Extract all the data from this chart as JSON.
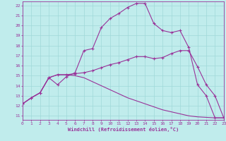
{
  "xlabel": "Windchill (Refroidissement éolien,°C)",
  "bg_color": "#c0ecec",
  "grid_color": "#a0d8d8",
  "line_color": "#993399",
  "x_ticks": [
    0,
    1,
    2,
    3,
    4,
    5,
    6,
    7,
    8,
    9,
    10,
    11,
    12,
    13,
    14,
    15,
    16,
    17,
    18,
    19,
    20,
    21,
    22,
    23
  ],
  "y_ticks": [
    11,
    12,
    13,
    14,
    15,
    16,
    17,
    18,
    19,
    20,
    21,
    22
  ],
  "xlim": [
    0,
    23
  ],
  "ylim": [
    10.6,
    22.4
  ],
  "line1_x": [
    0,
    1,
    2,
    3,
    4,
    5,
    6,
    7,
    8,
    9,
    10,
    11,
    12,
    13,
    14,
    15,
    16,
    17,
    18,
    19,
    20,
    21,
    22,
    23
  ],
  "line1_y": [
    12.2,
    12.8,
    13.3,
    14.8,
    14.1,
    14.9,
    15.3,
    17.5,
    17.7,
    19.8,
    20.7,
    21.2,
    21.8,
    22.2,
    22.2,
    20.2,
    19.5,
    19.3,
    19.5,
    17.8,
    14.1,
    13.0,
    10.8,
    10.8
  ],
  "line2_x": [
    0,
    1,
    2,
    3,
    4,
    5,
    6,
    7,
    8,
    9,
    10,
    11,
    12,
    13,
    14,
    15,
    16,
    17,
    18,
    19,
    20,
    21,
    22,
    23
  ],
  "line2_y": [
    12.2,
    12.8,
    13.3,
    14.8,
    15.1,
    15.1,
    15.2,
    15.3,
    15.5,
    15.8,
    16.1,
    16.3,
    16.6,
    16.9,
    16.9,
    16.7,
    16.8,
    17.2,
    17.5,
    17.5,
    15.9,
    14.1,
    13.0,
    10.8
  ],
  "line3_x": [
    0,
    1,
    2,
    3,
    4,
    5,
    6,
    7,
    8,
    9,
    10,
    11,
    12,
    13,
    14,
    15,
    16,
    17,
    18,
    19,
    20,
    21,
    22,
    23
  ],
  "line3_y": [
    12.2,
    12.8,
    13.3,
    14.8,
    15.1,
    15.1,
    15.0,
    14.8,
    14.4,
    14.0,
    13.6,
    13.2,
    12.8,
    12.5,
    12.2,
    11.9,
    11.6,
    11.4,
    11.2,
    11.0,
    10.9,
    10.85,
    10.8,
    10.8
  ]
}
